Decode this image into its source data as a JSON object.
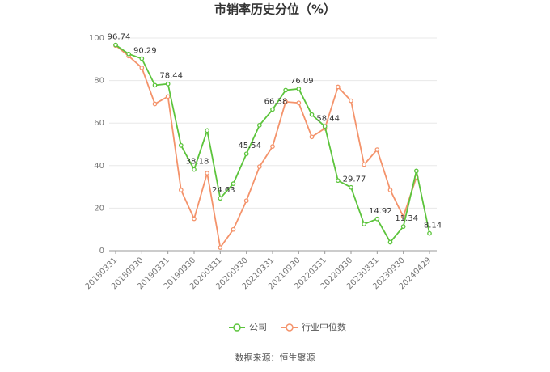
{
  "chart_data": {
    "type": "line",
    "title": "市销率历史分位（%）",
    "source": "数据来源：恒生聚源",
    "categories": [
      "20180331",
      null,
      "20180930",
      null,
      "20190331",
      null,
      "20190930",
      null,
      "20200331",
      null,
      "20200930",
      null,
      "20210331",
      null,
      "20210930",
      null,
      "20220331",
      null,
      "20220930",
      null,
      "20230331",
      null,
      "20230930",
      null,
      "20240429"
    ],
    "series": [
      {
        "name": "公司",
        "color": "#5cc43c",
        "values": [
          96.74,
          92.5,
          90.29,
          77.8,
          78.44,
          49.5,
          38.18,
          56.5,
          24.63,
          31.5,
          45.54,
          59,
          66.38,
          75.5,
          76.09,
          64,
          58.44,
          33,
          29.77,
          12.5,
          14.92,
          4,
          11.34,
          37.5,
          8.14
        ],
        "value_labels": [
          "96.74",
          null,
          "90.29",
          null,
          "78.44",
          null,
          "38.18",
          null,
          "24.63",
          null,
          "45.54",
          null,
          "66.38",
          null,
          "76.09",
          null,
          "58.44",
          null,
          "29.77",
          null,
          "14.92",
          null,
          "11.34",
          null,
          "8.14"
        ]
      },
      {
        "name": "行业中位数",
        "color": "#f4936b",
        "values": [
          96.5,
          91.5,
          86,
          69,
          72.5,
          28.5,
          15,
          36.5,
          1.5,
          10,
          23.5,
          39.5,
          49,
          70,
          69.5,
          53.5,
          57.5,
          77,
          70.5,
          40.5,
          47.5,
          28.5,
          16,
          34.5,
          null
        ]
      }
    ],
    "ylim": [
      0,
      100
    ],
    "yticks": [
      0,
      20,
      40,
      60,
      80,
      100
    ],
    "grid": true,
    "legend": "bottom"
  }
}
